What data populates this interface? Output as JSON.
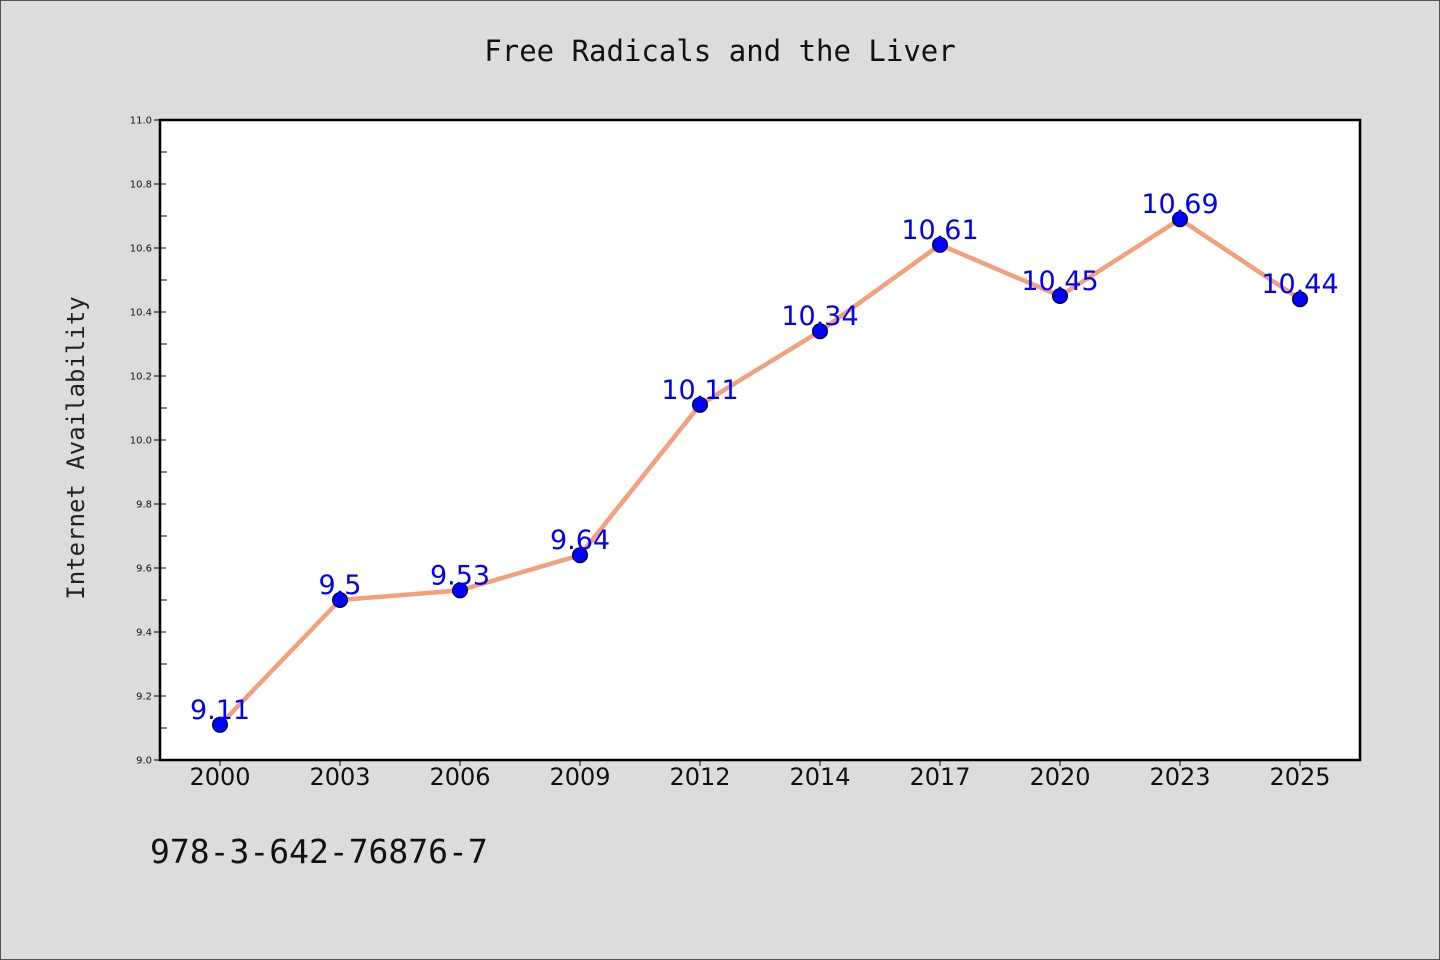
{
  "chart_data": {
    "type": "line",
    "title": "Free Radicals and the Liver",
    "xlabel": "",
    "ylabel": "Internet Availability",
    "categories": [
      "2000",
      "2003",
      "2006",
      "2009",
      "2012",
      "2014",
      "2017",
      "2020",
      "2023",
      "2025"
    ],
    "series": [
      {
        "values": [
          9.11,
          9.5,
          9.53,
          9.64,
          10.11,
          10.34,
          10.61,
          10.45,
          10.69,
          10.44
        ],
        "data_labels": [
          "9.11",
          "9.5",
          "9.53",
          "9.64",
          "10.11",
          "10.34",
          "10.61",
          "10.45",
          "10.69",
          "10.44"
        ]
      }
    ],
    "ylim": [
      9.0,
      11.0
    ],
    "y_ticks": [
      "9.0",
      "9.2",
      "9.4",
      "9.6",
      "9.8",
      "10.0",
      "10.2",
      "10.4",
      "10.6",
      "10.8",
      "11.0"
    ],
    "grid": false,
    "colors": {
      "line": "#f4a07c",
      "marker": "#0000ff",
      "data_label": "#0000ff",
      "background": "#dcdcdc",
      "plot_area": "#ffffff"
    }
  },
  "footer": {
    "isbn": "978-3-642-76876-7"
  }
}
